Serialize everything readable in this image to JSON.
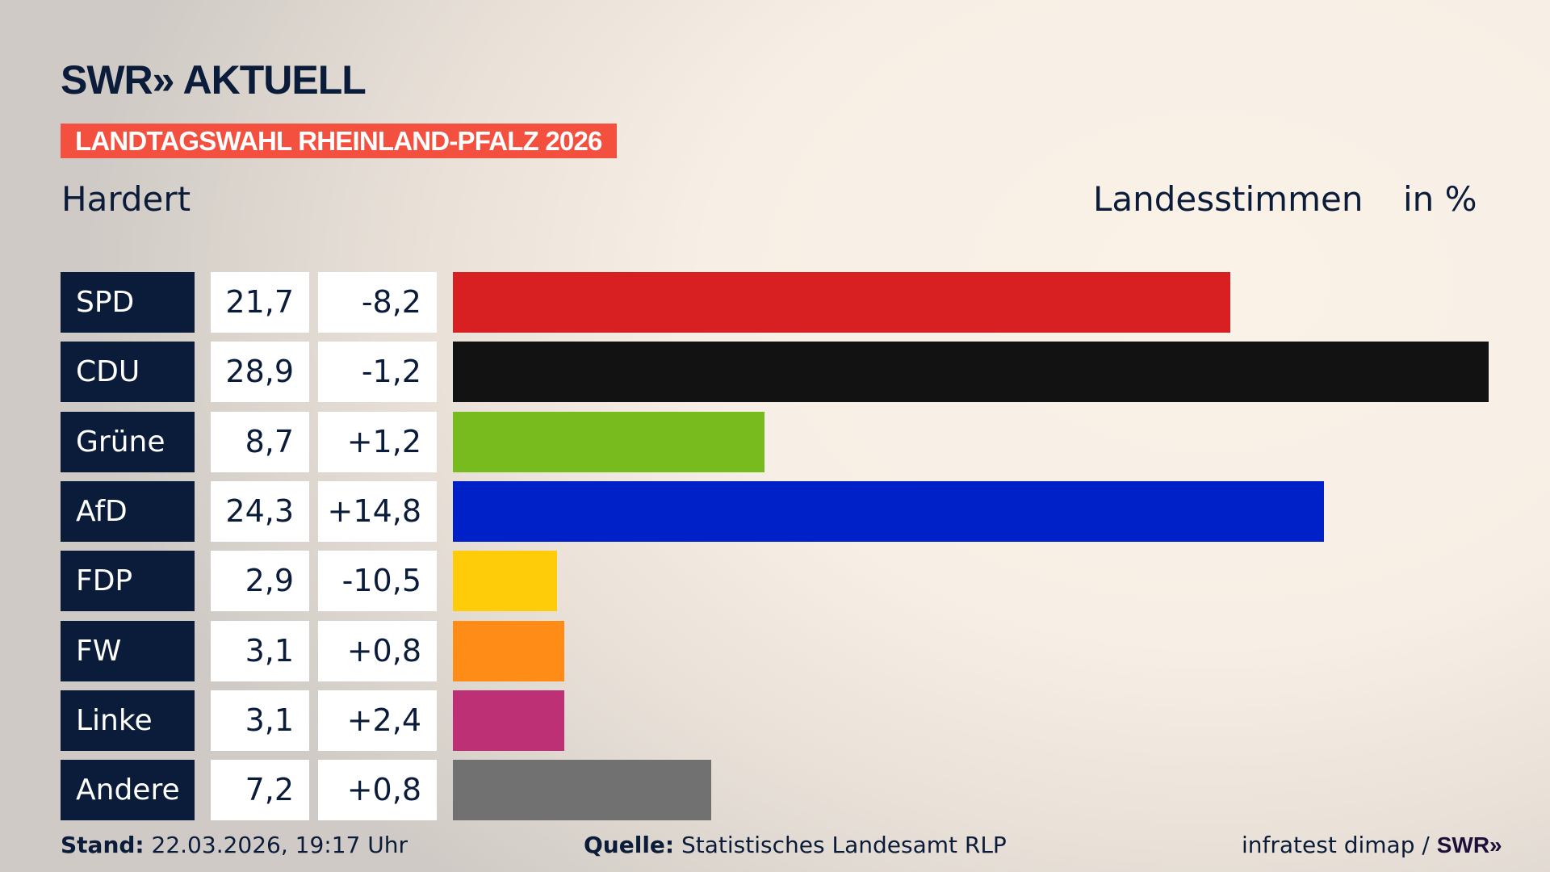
{
  "header": {
    "logo": "SWR» AKTUELL",
    "tag": "LANDTAGSWAHL RHEINLAND-PFALZ 2026",
    "place": "Hardert",
    "measure": "Landesstimmen",
    "unit": "in %"
  },
  "chart_data": {
    "type": "bar",
    "orientation": "horizontal",
    "categories": [
      "SPD",
      "CDU",
      "Grüne",
      "AfD",
      "FDP",
      "FW",
      "Linke",
      "Andere"
    ],
    "values": [
      21.7,
      28.9,
      8.7,
      24.3,
      2.9,
      3.1,
      3.1,
      7.2
    ],
    "value_labels": [
      "21,7",
      "28,9",
      "8,7",
      "24,3",
      "2,9",
      "3,1",
      "3,1",
      "7,2"
    ],
    "change_labels": [
      "-8,2",
      "-1,2",
      "+1,2",
      "+14,8",
      "-10,5",
      "+0,8",
      "+2,4",
      "+0,8"
    ],
    "changes": [
      -8.2,
      -1.2,
      1.2,
      14.8,
      -10.5,
      0.8,
      2.4,
      0.8
    ],
    "colors": [
      "#d81f21",
      "#121212",
      "#78bb1e",
      "#0020c8",
      "#fecc09",
      "#fe8c17",
      "#bd3075",
      "#717171"
    ],
    "xlim": [
      0,
      28.9
    ]
  },
  "footer": {
    "stand_label": "Stand:",
    "stand_value": "22.03.2026, 19:17 Uhr",
    "source_label": "Quelle:",
    "source_value": "Statistisches Landesamt RLP",
    "credit": "infratest dimap /",
    "credit_logo": "SWR»"
  }
}
